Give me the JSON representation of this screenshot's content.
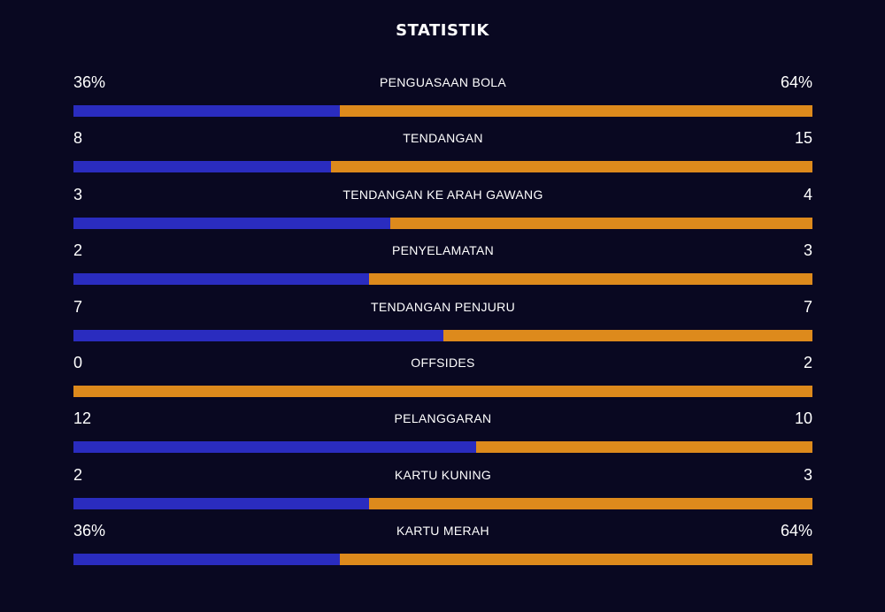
{
  "title": "STATISTIK",
  "colors": {
    "background": "#090821",
    "home": "#2a2cbf",
    "away": "#dd8a1c",
    "text": "#ffffff"
  },
  "stats": [
    {
      "label": "PENGUASAAN BOLA",
      "home": "36%",
      "away": "64%",
      "home_share": 0.36
    },
    {
      "label": "TENDANGAN",
      "home": "8",
      "away": "15",
      "home_share": 0.348
    },
    {
      "label": "TENDANGAN KE ARAH GAWANG",
      "home": "3",
      "away": "4",
      "home_share": 0.429
    },
    {
      "label": "PENYELAMATAN",
      "home": "2",
      "away": "3",
      "home_share": 0.4
    },
    {
      "label": "TENDANGAN PENJURU",
      "home": "7",
      "away": "7",
      "home_share": 0.5
    },
    {
      "label": "OFFSIDES",
      "home": "0",
      "away": "2",
      "home_share": 0
    },
    {
      "label": "PELANGGARAN",
      "home": "12",
      "away": "10",
      "home_share": 0.545
    },
    {
      "label": "KARTU KUNING",
      "home": "2",
      "away": "3",
      "home_share": 0.4
    },
    {
      "label": "KARTU MERAH",
      "home": "36%",
      "away": "64%",
      "home_share": 0.36
    }
  ]
}
